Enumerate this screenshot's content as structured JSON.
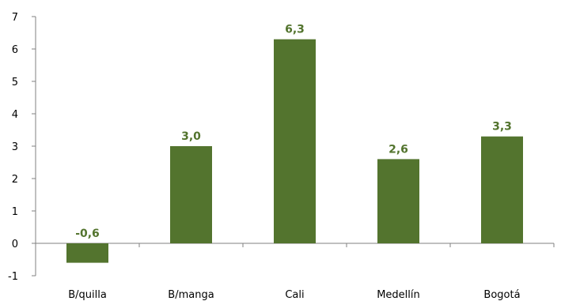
{
  "chart_data": {
    "type": "bar",
    "title": "",
    "xlabel": "",
    "ylabel": "",
    "categories": [
      "B/quilla",
      "B/manga",
      "Cali",
      "Medellín",
      "Bogotá"
    ],
    "values": [
      -0.6,
      3.0,
      6.3,
      2.6,
      3.3
    ],
    "value_labels": [
      "-0,6",
      "3,0",
      "6,3",
      "2,6",
      "3,3"
    ],
    "ylim": [
      -1,
      7
    ],
    "yticks": [
      -1,
      0,
      1,
      2,
      3,
      4,
      5,
      6,
      7
    ],
    "grid": false,
    "legend": "none",
    "bar_color": "#53742E",
    "label_color": "#53742E"
  }
}
